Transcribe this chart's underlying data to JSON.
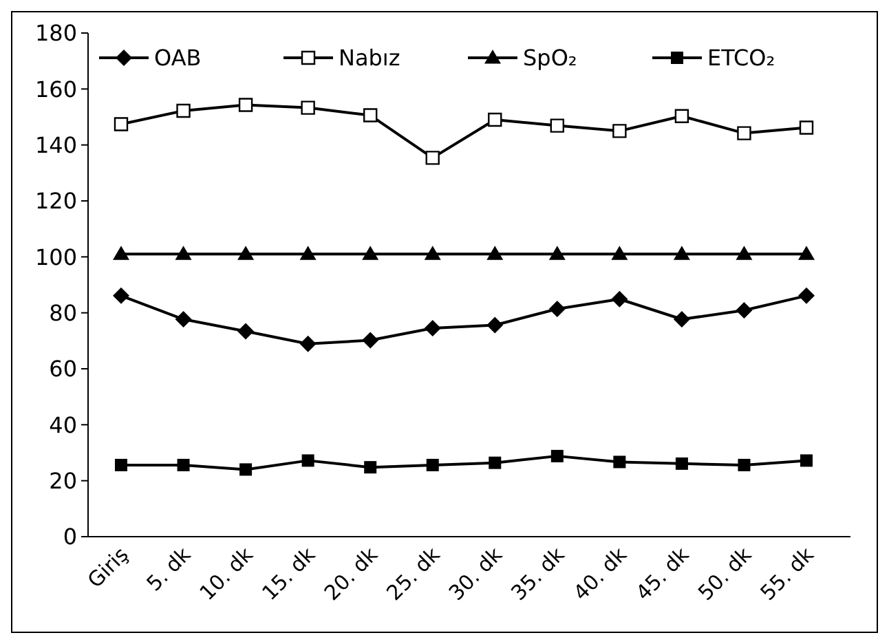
{
  "chart_data": {
    "type": "line",
    "categories": [
      "Giriş",
      "5. dk",
      "10. dk",
      "15. dk",
      "20. dk",
      "25. dk",
      "30. dk",
      "35. dk",
      "40. dk",
      "45. dk",
      "50. dk",
      "55. dk"
    ],
    "series": [
      {
        "name": "OAB",
        "color": "#000000",
        "marker": "diamond",
        "values": [
          86.1,
          77.7,
          73.4,
          68.9,
          70.2,
          74.5,
          75.6,
          81.4,
          84.9,
          77.7,
          80.9,
          86.1
        ]
      },
      {
        "name": "Nabız",
        "color": "#000000",
        "marker": "square",
        "values": [
          147.4,
          152.2,
          154.3,
          153.3,
          150.6,
          135.4,
          149.0,
          146.9,
          145.0,
          150.3,
          144.2,
          146.2
        ]
      },
      {
        "name": "SpO₂",
        "color": "#000000",
        "marker": "triangle",
        "values": [
          101,
          101,
          101,
          101,
          101,
          101,
          101,
          101,
          101,
          101,
          101,
          101
        ]
      },
      {
        "name": "ETCO₂",
        "color": "#000000",
        "marker": "square",
        "values": [
          25.6,
          25.6,
          24.0,
          27.2,
          24.8,
          25.6,
          26.4,
          28.8,
          26.7,
          26.1,
          25.6,
          27.2
        ]
      }
    ],
    "ylim": [
      0,
      180
    ],
    "yticks": [
      0,
      20,
      40,
      60,
      80,
      100,
      120,
      140,
      160,
      180
    ],
    "legend": "top",
    "grid": false
  }
}
